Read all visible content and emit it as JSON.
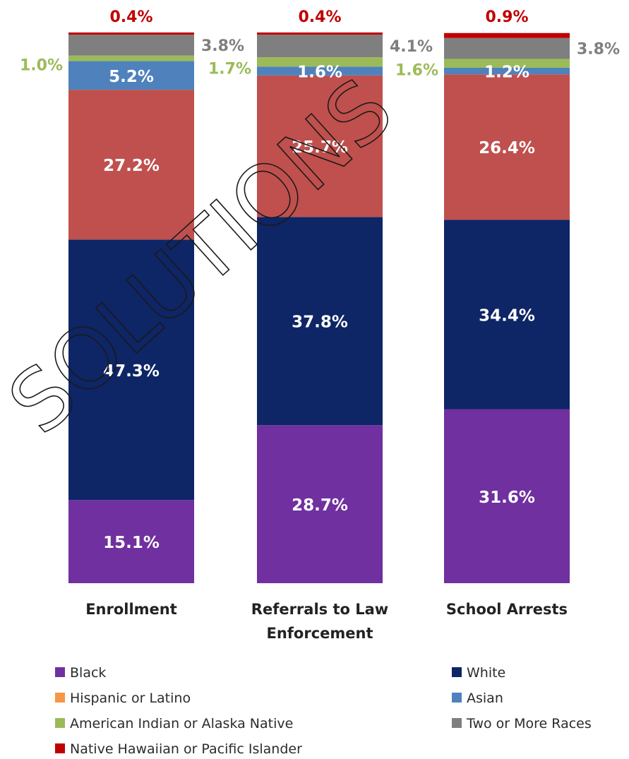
{
  "chart_data": {
    "type": "bar",
    "stacked": true,
    "categories": [
      "Enrollment",
      "Referrals to Law Enforcement",
      "School Arrests"
    ],
    "category_lines": [
      [
        "Enrollment"
      ],
      [
        "Referrals to Law",
        "Enforcement"
      ],
      [
        "School Arrests"
      ]
    ],
    "series": [
      {
        "name": "Black",
        "color": "#7030A0",
        "values": [
          15.1,
          28.7,
          31.6
        ],
        "labels": [
          "15.1%",
          "28.7%",
          "31.6%"
        ]
      },
      {
        "name": "White",
        "color": "#0E2566",
        "values": [
          47.3,
          37.8,
          34.4
        ],
        "labels": [
          "47.3%",
          "37.8%",
          "34.4%"
        ]
      },
      {
        "name": "Hispanic or Latino",
        "color": "#F79646",
        "values": [
          0,
          0,
          0
        ],
        "labels": [
          "",
          "",
          ""
        ]
      },
      {
        "name": "Hispanic or Latino (bar)",
        "legend": false,
        "color": "#C0504D",
        "values": [
          27.2,
          25.7,
          26.4
        ],
        "labels": [
          "27.2%",
          "25.7%",
          "26.4%"
        ]
      },
      {
        "name": "Asian",
        "color": "#4F81BD",
        "values": [
          5.2,
          1.6,
          1.2
        ],
        "labels": [
          "5.2%",
          "1.6%",
          "1.2%"
        ]
      },
      {
        "name": "American Indian or Alaska Native",
        "color": "#9BBB59",
        "values": [
          1.0,
          1.7,
          1.6
        ],
        "labels": [
          "1.0%",
          "1.7%",
          "1.6%"
        ]
      },
      {
        "name": "Two or More Races",
        "color": "#7F7F7F",
        "values": [
          3.8,
          4.1,
          3.8
        ],
        "labels": [
          "3.8%",
          "4.1%",
          "3.8%"
        ]
      },
      {
        "name": "Native Hawaiian or Pacific Islander",
        "color": "#C00000",
        "values": [
          0.4,
          0.4,
          0.9
        ],
        "labels": [
          "0.4%",
          "0.4%",
          "0.9%"
        ]
      }
    ],
    "outside_label_colors": {
      "American Indian or Alaska Native": "#9BBB59",
      "Two or More Races": "#7F7F7F",
      "Native Hawaiian or Pacific Islander": "#C00000"
    },
    "legend_left": [
      "Black",
      "Hispanic or Latino",
      "American Indian or Alaska Native",
      "Native Hawaiian or Pacific Islander"
    ],
    "legend_right": [
      "White",
      "Asian",
      "Two or More Races"
    ],
    "ylim": [
      0,
      100
    ],
    "grid": false,
    "legend_position": "bottom"
  },
  "watermark": "SOLUTIONS"
}
